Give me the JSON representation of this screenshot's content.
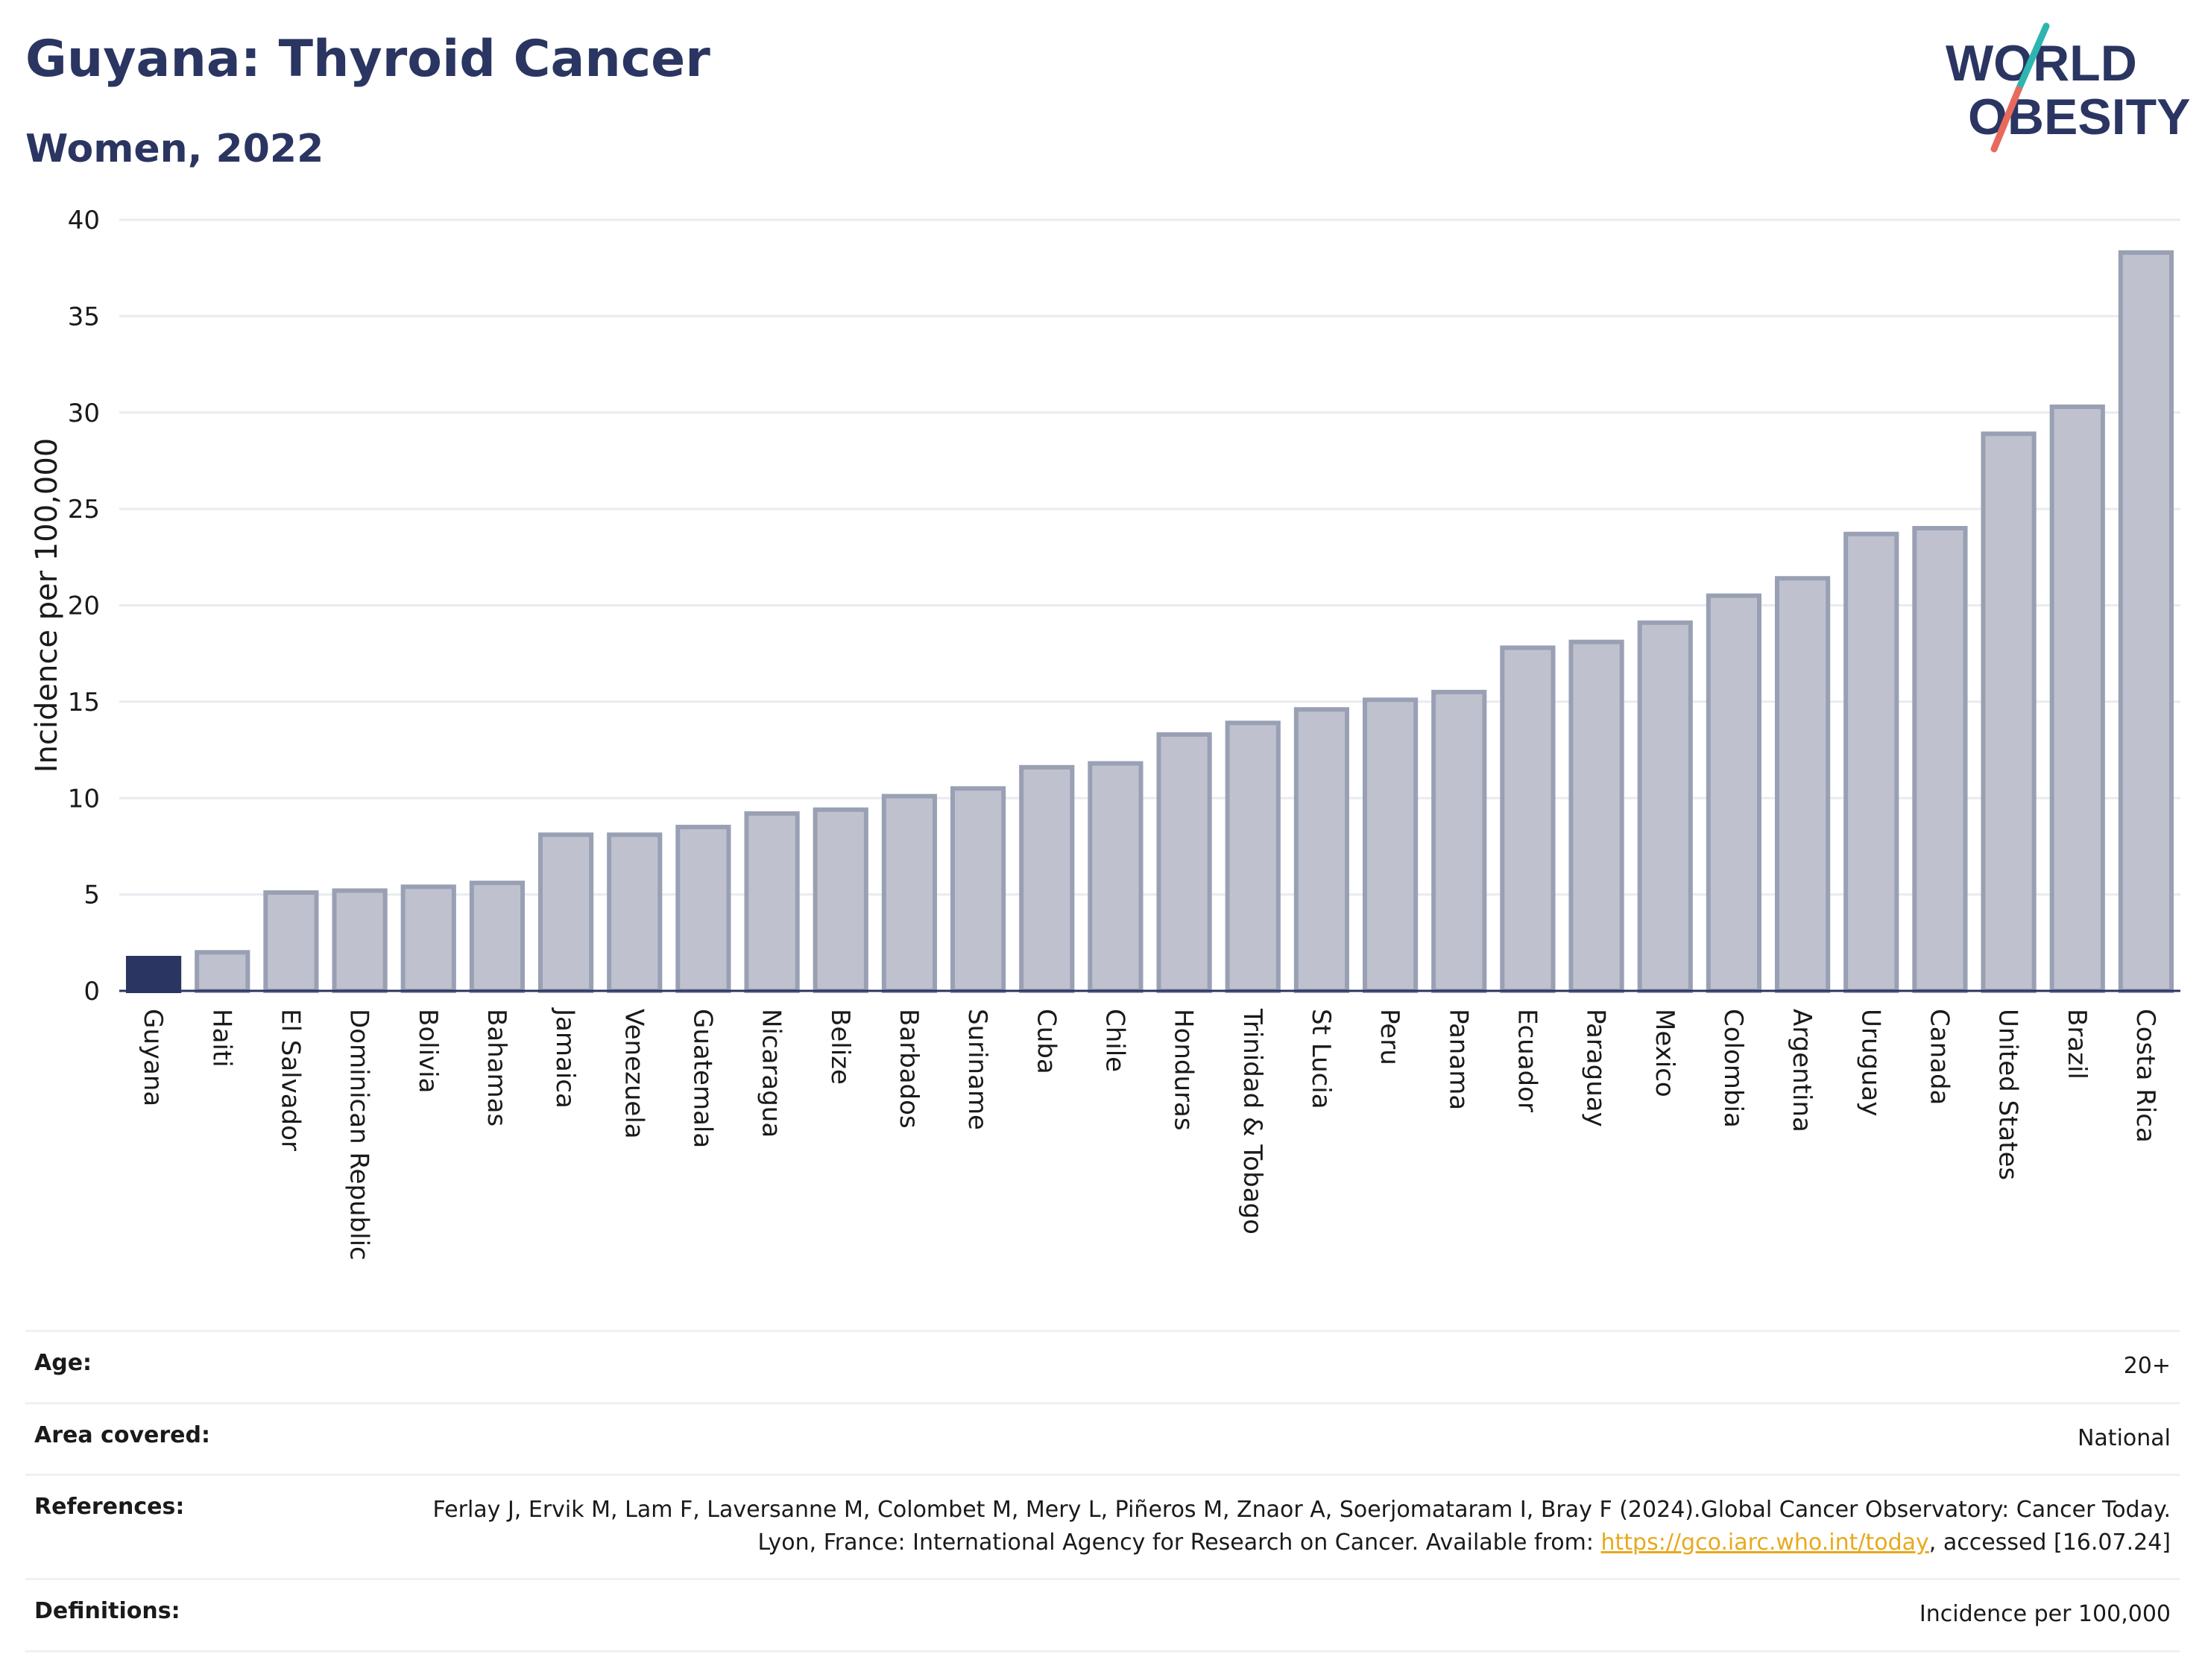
{
  "header": {
    "title": "Guyana: Thyroid Cancer",
    "subtitle": "Women, 2022"
  },
  "logo": {
    "line1": "WORLD",
    "line2": "OBESITY",
    "accent_colors": [
      "#2fb5b0",
      "#e86a5c"
    ]
  },
  "chart_data": {
    "type": "bar",
    "ylabel": "Incidence per 100,000",
    "ylim": [
      0,
      40
    ],
    "yticks": [
      0,
      5,
      10,
      15,
      20,
      25,
      30,
      35,
      40
    ],
    "grid": true,
    "highlight": "Guyana",
    "colors": {
      "highlight": "#2a3561",
      "bar": "#bfc2ce",
      "bar_border": "#9aa0b4"
    },
    "categories": [
      "Guyana",
      "Haiti",
      "El Salvador",
      "Dominican Republic",
      "Bolivia",
      "Bahamas",
      "Jamaica",
      "Venezuela",
      "Guatemala",
      "Nicaragua",
      "Belize",
      "Barbados",
      "Suriname",
      "Cuba",
      "Chile",
      "Honduras",
      "Trinidad & Tobago",
      "St Lucia",
      "Peru",
      "Panama",
      "Ecuador",
      "Paraguay",
      "Mexico",
      "Colombia",
      "Argentina",
      "Uruguay",
      "Canada",
      "United States",
      "Brazil",
      "Costa Rica"
    ],
    "values": [
      1.7,
      2.0,
      5.1,
      5.2,
      5.4,
      5.6,
      8.1,
      8.1,
      8.5,
      9.2,
      9.4,
      10.1,
      10.5,
      11.6,
      11.8,
      13.3,
      13.9,
      14.6,
      15.1,
      15.5,
      17.8,
      18.1,
      19.1,
      20.5,
      21.4,
      23.7,
      24.0,
      28.9,
      30.3,
      38.3
    ]
  },
  "meta": {
    "age_label": "Age:",
    "age_value": "20+",
    "area_label": "Area covered:",
    "area_value": "National",
    "references_label": "References:",
    "references_text": "Ferlay J, Ervik M, Lam F, Laversanne M, Colombet M, Mery L, Piñeros M, Znaor A, Soerjomataram I, Bray F (2024).Global Cancer Observatory: Cancer Today. Lyon, France: International Agency for Research on Cancer. Available from: ",
    "references_link": "https://gco.iarc.who.int/today",
    "references_tail": ", accessed [16.07.24]",
    "definitions_label": "Definitions:",
    "definitions_value": "Incidence per 100,000"
  }
}
